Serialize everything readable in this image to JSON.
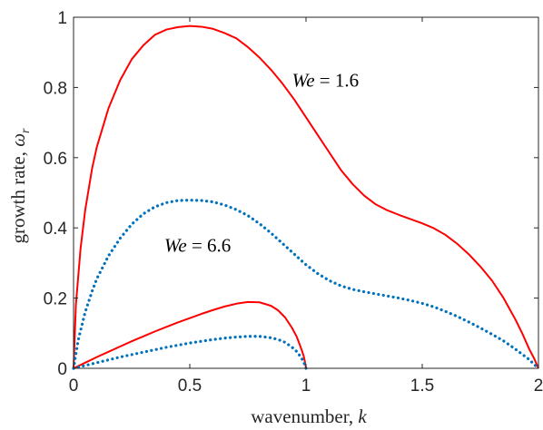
{
  "chart_data": {
    "type": "line",
    "xlabel": "wavenumber, ",
    "xlabel_var": "k",
    "ylabel": "growth rate, ",
    "ylabel_var": "ω",
    "ylabel_sub": "r",
    "xlim": [
      0,
      2
    ],
    "ylim": [
      0,
      1
    ],
    "xticks": [
      0,
      0.5,
      1,
      1.5,
      2
    ],
    "xtick_labels": [
      "0",
      "0.5",
      "1",
      "1.5",
      "2"
    ],
    "yticks": [
      0,
      0.2,
      0.4,
      0.6,
      0.8,
      1
    ],
    "ytick_labels": [
      "0",
      "0.2",
      "0.4",
      "0.6",
      "0.8",
      "1"
    ],
    "grid": false,
    "colors": {
      "solid": "#ff0000",
      "dotted": "#0072bd",
      "axes": "#262626"
    },
    "annotations": [
      {
        "var": "We",
        "text": " = 1.6",
        "x": 0.94,
        "y": 0.82
      },
      {
        "var": "We",
        "text": " = 6.6",
        "x": 0.39,
        "y": 0.35
      }
    ],
    "series": [
      {
        "style": "solid",
        "color": "#ff0000",
        "x": [
          0,
          0.01,
          0.03,
          0.05,
          0.08,
          0.1,
          0.15,
          0.2,
          0.25,
          0.3,
          0.35,
          0.4,
          0.45,
          0.5,
          0.55,
          0.6,
          0.65,
          0.7,
          0.75,
          0.8,
          0.85,
          0.9,
          0.95,
          1.0,
          1.05,
          1.1,
          1.15,
          1.2,
          1.25,
          1.3,
          1.35,
          1.4,
          1.45,
          1.5,
          1.55,
          1.6,
          1.65,
          1.7,
          1.75,
          1.8,
          1.85,
          1.9,
          1.93,
          1.96,
          1.98,
          1.99,
          2.0
        ],
        "y": [
          0,
          0.18,
          0.34,
          0.45,
          0.57,
          0.63,
          0.74,
          0.82,
          0.88,
          0.92,
          0.95,
          0.965,
          0.972,
          0.975,
          0.973,
          0.967,
          0.955,
          0.94,
          0.915,
          0.885,
          0.85,
          0.81,
          0.765,
          0.715,
          0.665,
          0.615,
          0.565,
          0.525,
          0.492,
          0.467,
          0.45,
          0.437,
          0.425,
          0.413,
          0.399,
          0.38,
          0.355,
          0.325,
          0.29,
          0.25,
          0.2,
          0.14,
          0.1,
          0.055,
          0.03,
          0.015,
          0
        ]
      },
      {
        "style": "dotted",
        "color": "#0072bd",
        "x": [
          0,
          0.02,
          0.05,
          0.08,
          0.1,
          0.15,
          0.2,
          0.25,
          0.3,
          0.35,
          0.4,
          0.45,
          0.5,
          0.55,
          0.6,
          0.65,
          0.7,
          0.75,
          0.8,
          0.85,
          0.9,
          0.95,
          1.0,
          1.05,
          1.1,
          1.15,
          1.2,
          1.25,
          1.3,
          1.35,
          1.4,
          1.45,
          1.5,
          1.55,
          1.6,
          1.65,
          1.7,
          1.75,
          1.8,
          1.85,
          1.9,
          1.93,
          1.96,
          1.98,
          2.0
        ],
        "y": [
          0,
          0.08,
          0.16,
          0.22,
          0.255,
          0.32,
          0.37,
          0.41,
          0.44,
          0.46,
          0.472,
          0.478,
          0.479,
          0.478,
          0.474,
          0.465,
          0.452,
          0.435,
          0.412,
          0.385,
          0.355,
          0.325,
          0.295,
          0.27,
          0.25,
          0.235,
          0.225,
          0.218,
          0.212,
          0.206,
          0.2,
          0.193,
          0.185,
          0.175,
          0.162,
          0.148,
          0.132,
          0.115,
          0.097,
          0.078,
          0.055,
          0.04,
          0.025,
          0.012,
          0
        ]
      },
      {
        "style": "solid",
        "color": "#ff0000",
        "x": [
          0,
          0.05,
          0.1,
          0.15,
          0.2,
          0.25,
          0.3,
          0.35,
          0.4,
          0.45,
          0.5,
          0.55,
          0.6,
          0.65,
          0.7,
          0.75,
          0.8,
          0.85,
          0.88,
          0.91,
          0.94,
          0.96,
          0.98,
          0.99,
          0.995,
          1.0
        ],
        "y": [
          0,
          0.016,
          0.032,
          0.047,
          0.062,
          0.077,
          0.091,
          0.105,
          0.118,
          0.131,
          0.143,
          0.155,
          0.166,
          0.176,
          0.184,
          0.189,
          0.188,
          0.178,
          0.165,
          0.145,
          0.115,
          0.09,
          0.055,
          0.035,
          0.02,
          0
        ]
      },
      {
        "style": "dotted",
        "color": "#0072bd",
        "x": [
          0,
          0.05,
          0.1,
          0.15,
          0.2,
          0.25,
          0.3,
          0.35,
          0.4,
          0.45,
          0.5,
          0.55,
          0.6,
          0.65,
          0.7,
          0.75,
          0.8,
          0.85,
          0.88,
          0.91,
          0.94,
          0.96,
          0.98,
          0.99,
          1.0
        ],
        "y": [
          0,
          0.008,
          0.016,
          0.024,
          0.032,
          0.039,
          0.046,
          0.053,
          0.06,
          0.066,
          0.072,
          0.077,
          0.082,
          0.086,
          0.089,
          0.091,
          0.091,
          0.087,
          0.082,
          0.074,
          0.06,
          0.048,
          0.03,
          0.018,
          0
        ]
      }
    ]
  }
}
